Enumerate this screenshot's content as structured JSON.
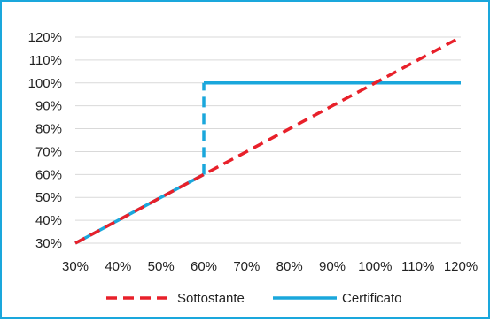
{
  "chart_data": {
    "type": "line",
    "x": [
      30,
      40,
      50,
      60,
      70,
      80,
      90,
      100,
      110,
      120
    ],
    "xlim": [
      30,
      120
    ],
    "ylim": [
      30,
      120
    ],
    "x_tick_labels": [
      "30%",
      "40%",
      "50%",
      "60%",
      "70%",
      "80%",
      "90%",
      "100%",
      "110%",
      "120%"
    ],
    "y_tick_labels": [
      "30%",
      "40%",
      "50%",
      "60%",
      "70%",
      "80%",
      "90%",
      "100%",
      "110%",
      "120%"
    ],
    "y_ticks": [
      30,
      40,
      50,
      60,
      70,
      80,
      90,
      100,
      110,
      120
    ],
    "grid": "horizontal",
    "legend_position": "bottom",
    "series": [
      {
        "name": "Sottostante",
        "color": "#e8202a",
        "style": "dashed",
        "points": [
          [
            30,
            30
          ],
          [
            120,
            120
          ]
        ]
      },
      {
        "name": "Certificato",
        "color": "#1aa7dc",
        "style": "solid",
        "segments": [
          {
            "style": "solid",
            "points": [
              [
                30,
                30
              ],
              [
                60,
                60
              ]
            ]
          },
          {
            "style": "dashed",
            "points": [
              [
                60,
                60
              ],
              [
                60,
                100
              ]
            ]
          },
          {
            "style": "solid",
            "points": [
              [
                60,
                100
              ],
              [
                120,
                100
              ]
            ]
          }
        ]
      }
    ]
  }
}
